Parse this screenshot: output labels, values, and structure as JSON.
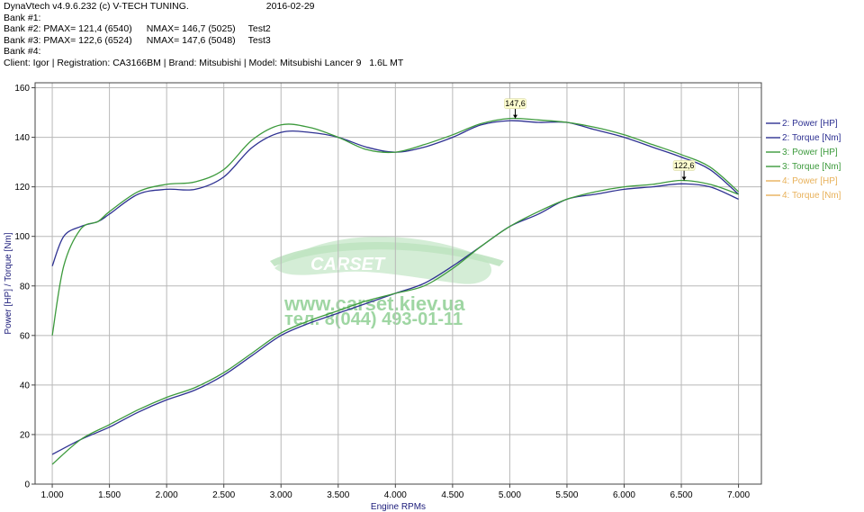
{
  "header": {
    "app": "DynaVtech v4.9.6.232 (c) V-TECH TUNING.",
    "date": "2016-02-29",
    "bank1": "Bank #1:",
    "bank2": {
      "label": "Bank #2:",
      "pmax": "PMAX= 121,4 (6540)",
      "nmax": "NMAX= 146,7 (5025)",
      "name": "Test2"
    },
    "bank3": {
      "label": "Bank #3:",
      "pmax": "PMAX= 122,6 (6524)",
      "nmax": "NMAX= 147,6 (5048)",
      "name": "Test3"
    },
    "bank4": "Bank #4:",
    "client": "Client: Igor | Registration: CA3166BM | Brand: Mitsubishi | Model: Mitsubishi Lancer 9   1.6L MT"
  },
  "watermark": {
    "brand": "CARSET",
    "url": "www.carset.kiev.ua",
    "tel": "тел. 8(044) 493-01-11"
  },
  "chart_data": {
    "type": "line",
    "xlabel": "Engine RPMs",
    "ylabel": "Power [HP] / Torque [Nm]",
    "xlim": [
      0.85,
      7.2
    ],
    "ylim": [
      0,
      162
    ],
    "x_ticks": [
      "1.000",
      "1.500",
      "2.000",
      "2.500",
      "3.000",
      "3.500",
      "4.000",
      "4.500",
      "5.000",
      "5.500",
      "6.000",
      "6.500",
      "7.000"
    ],
    "x_tick_values": [
      1.0,
      1.5,
      2.0,
      2.5,
      3.0,
      3.5,
      4.0,
      4.5,
      5.0,
      5.5,
      6.0,
      6.5,
      7.0
    ],
    "y_ticks": [
      "0",
      "20",
      "40",
      "60",
      "80",
      "100",
      "120",
      "140",
      "160"
    ],
    "y_tick_values": [
      0,
      20,
      40,
      60,
      80,
      100,
      120,
      140,
      160
    ],
    "grid": true,
    "legend_position": "right",
    "colors": {
      "bank2": "#2e3192",
      "bank3": "#3c9a3c",
      "bank4": "#e8b15a"
    },
    "series": [
      {
        "name": "2: Power [HP]",
        "color": "#2e3192",
        "x": [
          1.0,
          1.25,
          1.5,
          1.75,
          2.0,
          2.25,
          2.5,
          2.75,
          3.0,
          3.25,
          3.5,
          3.75,
          4.0,
          4.25,
          4.5,
          4.75,
          5.0,
          5.25,
          5.5,
          5.75,
          6.0,
          6.25,
          6.5,
          6.75,
          7.0
        ],
        "y": [
          12,
          18,
          23,
          29,
          34,
          38,
          44,
          52,
          60,
          65,
          69,
          73,
          77,
          81,
          88,
          96,
          104,
          109,
          115,
          117,
          119,
          120,
          121.2,
          120,
          115
        ]
      },
      {
        "name": "2: Torque [Nm]",
        "color": "#2e3192",
        "x": [
          1.0,
          1.1,
          1.25,
          1.4,
          1.5,
          1.75,
          2.0,
          2.25,
          2.5,
          2.75,
          3.0,
          3.25,
          3.5,
          3.75,
          4.0,
          4.25,
          4.5,
          4.75,
          5.0,
          5.25,
          5.5,
          5.75,
          6.0,
          6.25,
          6.5,
          6.75,
          7.0
        ],
        "y": [
          88,
          100,
          104,
          106,
          109,
          117,
          119,
          119,
          124,
          136,
          142,
          142,
          140,
          136,
          134,
          136,
          140,
          145,
          146.7,
          146,
          146,
          143,
          140,
          136,
          132,
          127,
          117
        ]
      },
      {
        "name": "3: Power [HP]",
        "color": "#3c9a3c",
        "x": [
          1.0,
          1.25,
          1.5,
          1.75,
          2.0,
          2.25,
          2.5,
          2.75,
          3.0,
          3.25,
          3.5,
          3.75,
          4.0,
          4.25,
          4.5,
          4.75,
          5.0,
          5.25,
          5.5,
          5.75,
          6.0,
          6.25,
          6.5,
          6.75,
          7.0
        ],
        "y": [
          8,
          18,
          24,
          30,
          35,
          39,
          45,
          53,
          61,
          66,
          70,
          74,
          77,
          80,
          87,
          96,
          104,
          110,
          115,
          118,
          120,
          121,
          122.6,
          121,
          117
        ]
      },
      {
        "name": "3: Torque [Nm]",
        "color": "#3c9a3c",
        "x": [
          1.0,
          1.1,
          1.25,
          1.4,
          1.5,
          1.75,
          2.0,
          2.25,
          2.5,
          2.75,
          3.0,
          3.25,
          3.5,
          3.75,
          4.0,
          4.25,
          4.5,
          4.75,
          5.0,
          5.25,
          5.5,
          5.75,
          6.0,
          6.25,
          6.5,
          6.75,
          7.0
        ],
        "y": [
          60,
          88,
          103,
          106,
          110,
          118,
          121,
          122,
          127,
          139,
          145,
          144,
          140,
          135,
          134,
          137,
          141,
          145.5,
          147.6,
          147,
          146,
          144,
          141,
          137,
          133,
          128,
          118
        ]
      },
      {
        "name": "4: Power [HP]",
        "color": "#e8b15a",
        "x": [],
        "y": []
      },
      {
        "name": "4: Torque [Nm]",
        "color": "#e8b15a",
        "x": [],
        "y": []
      }
    ],
    "annotations": [
      {
        "text": "147,6",
        "x": 5.048,
        "y": 147.6
      },
      {
        "text": "122,6",
        "x": 6.524,
        "y": 122.6
      }
    ]
  }
}
